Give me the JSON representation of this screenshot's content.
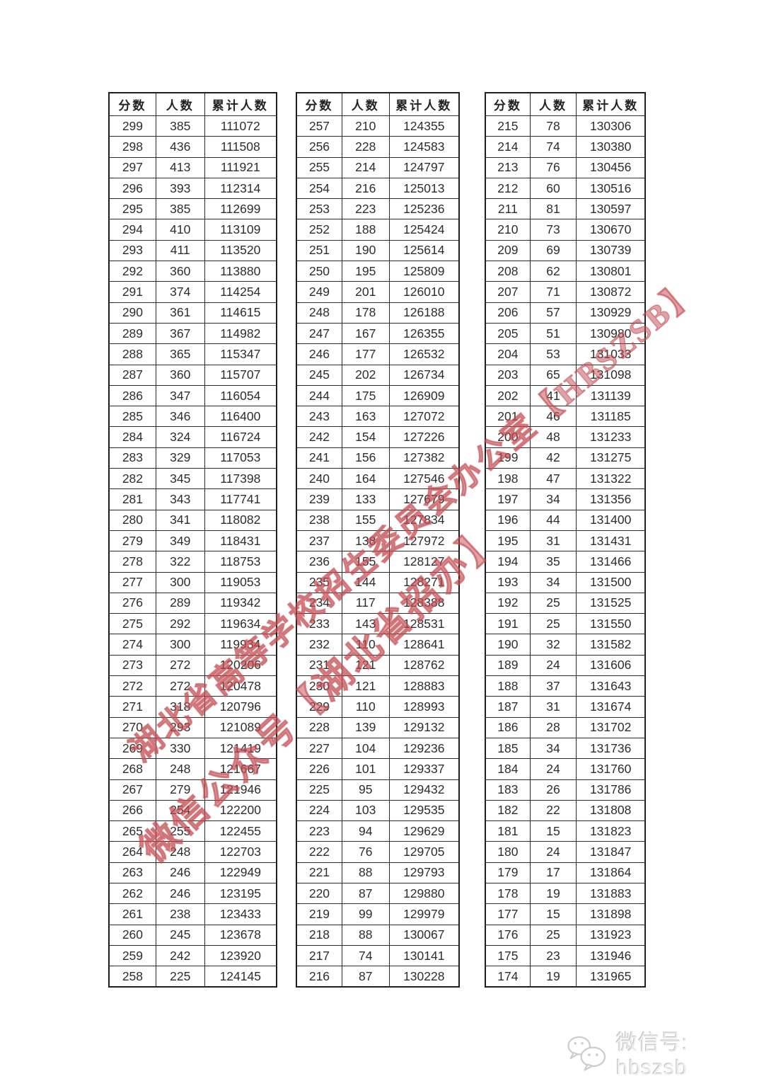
{
  "page": {
    "background": "#ffffff"
  },
  "columns": [
    "分数",
    "人数",
    "累计人数"
  ],
  "tables": [
    {
      "rows": [
        [
          299,
          385,
          111072
        ],
        [
          298,
          436,
          111508
        ],
        [
          297,
          413,
          111921
        ],
        [
          296,
          393,
          112314
        ],
        [
          295,
          385,
          112699
        ],
        [
          294,
          410,
          113109
        ],
        [
          293,
          411,
          113520
        ],
        [
          292,
          360,
          113880
        ],
        [
          291,
          374,
          114254
        ],
        [
          290,
          361,
          114615
        ],
        [
          289,
          367,
          114982
        ],
        [
          288,
          365,
          115347
        ],
        [
          287,
          360,
          115707
        ],
        [
          286,
          347,
          116054
        ],
        [
          285,
          346,
          116400
        ],
        [
          284,
          324,
          116724
        ],
        [
          283,
          329,
          117053
        ],
        [
          282,
          345,
          117398
        ],
        [
          281,
          343,
          117741
        ],
        [
          280,
          341,
          118082
        ],
        [
          279,
          349,
          118431
        ],
        [
          278,
          322,
          118753
        ],
        [
          277,
          300,
          119053
        ],
        [
          276,
          289,
          119342
        ],
        [
          275,
          292,
          119634
        ],
        [
          274,
          300,
          119934
        ],
        [
          273,
          272,
          120206
        ],
        [
          272,
          272,
          120478
        ],
        [
          271,
          318,
          120796
        ],
        [
          270,
          293,
          121089
        ],
        [
          269,
          330,
          121419
        ],
        [
          268,
          248,
          121667
        ],
        [
          267,
          279,
          121946
        ],
        [
          266,
          254,
          122200
        ],
        [
          265,
          255,
          122455
        ],
        [
          264,
          248,
          122703
        ],
        [
          263,
          246,
          122949
        ],
        [
          262,
          246,
          123195
        ],
        [
          261,
          238,
          123433
        ],
        [
          260,
          245,
          123678
        ],
        [
          259,
          242,
          123920
        ],
        [
          258,
          225,
          124145
        ]
      ]
    },
    {
      "rows": [
        [
          257,
          210,
          124355
        ],
        [
          256,
          228,
          124583
        ],
        [
          255,
          214,
          124797
        ],
        [
          254,
          216,
          125013
        ],
        [
          253,
          223,
          125236
        ],
        [
          252,
          188,
          125424
        ],
        [
          251,
          190,
          125614
        ],
        [
          250,
          195,
          125809
        ],
        [
          249,
          201,
          126010
        ],
        [
          248,
          178,
          126188
        ],
        [
          247,
          167,
          126355
        ],
        [
          246,
          177,
          126532
        ],
        [
          245,
          202,
          126734
        ],
        [
          244,
          175,
          126909
        ],
        [
          243,
          163,
          127072
        ],
        [
          242,
          154,
          127226
        ],
        [
          241,
          156,
          127382
        ],
        [
          240,
          164,
          127546
        ],
        [
          239,
          133,
          127679
        ],
        [
          238,
          155,
          127834
        ],
        [
          237,
          138,
          127972
        ],
        [
          236,
          155,
          128127
        ],
        [
          235,
          144,
          128271
        ],
        [
          234,
          117,
          128388
        ],
        [
          233,
          143,
          128531
        ],
        [
          232,
          110,
          128641
        ],
        [
          231,
          121,
          128762
        ],
        [
          230,
          121,
          128883
        ],
        [
          229,
          110,
          128993
        ],
        [
          228,
          139,
          129132
        ],
        [
          227,
          104,
          129236
        ],
        [
          226,
          101,
          129337
        ],
        [
          225,
          95,
          129432
        ],
        [
          224,
          103,
          129535
        ],
        [
          223,
          94,
          129629
        ],
        [
          222,
          76,
          129705
        ],
        [
          221,
          88,
          129793
        ],
        [
          220,
          87,
          129880
        ],
        [
          219,
          99,
          129979
        ],
        [
          218,
          88,
          130067
        ],
        [
          217,
          74,
          130141
        ],
        [
          216,
          87,
          130228
        ]
      ]
    },
    {
      "rows": [
        [
          215,
          78,
          130306
        ],
        [
          214,
          74,
          130380
        ],
        [
          213,
          76,
          130456
        ],
        [
          212,
          60,
          130516
        ],
        [
          211,
          81,
          130597
        ],
        [
          210,
          73,
          130670
        ],
        [
          209,
          69,
          130739
        ],
        [
          208,
          62,
          130801
        ],
        [
          207,
          71,
          130872
        ],
        [
          206,
          57,
          130929
        ],
        [
          205,
          51,
          130980
        ],
        [
          204,
          53,
          131033
        ],
        [
          203,
          65,
          131098
        ],
        [
          202,
          41,
          131139
        ],
        [
          201,
          46,
          131185
        ],
        [
          200,
          48,
          131233
        ],
        [
          199,
          42,
          131275
        ],
        [
          198,
          47,
          131322
        ],
        [
          197,
          34,
          131356
        ],
        [
          196,
          44,
          131400
        ],
        [
          195,
          31,
          131431
        ],
        [
          194,
          35,
          131466
        ],
        [
          193,
          34,
          131500
        ],
        [
          192,
          25,
          131525
        ],
        [
          191,
          25,
          131550
        ],
        [
          190,
          32,
          131582
        ],
        [
          189,
          24,
          131606
        ],
        [
          188,
          37,
          131643
        ],
        [
          187,
          31,
          131674
        ],
        [
          186,
          28,
          131702
        ],
        [
          185,
          34,
          131736
        ],
        [
          184,
          24,
          131760
        ],
        [
          183,
          26,
          131786
        ],
        [
          182,
          22,
          131808
        ],
        [
          181,
          15,
          131823
        ],
        [
          180,
          24,
          131847
        ],
        [
          179,
          17,
          131864
        ],
        [
          178,
          19,
          131883
        ],
        [
          177,
          15,
          131898
        ],
        [
          176,
          25,
          131923
        ],
        [
          175,
          23,
          131946
        ],
        [
          174,
          19,
          131965
        ]
      ]
    }
  ],
  "watermarks": [
    {
      "text": "湖北省高等学校招生委员会办公室【HBSZSB】",
      "color": "#c24a50"
    },
    {
      "text": "微信公众号【湖北省招办】",
      "color": "#c24a50"
    }
  ],
  "footer": {
    "icon": "wechat-icon",
    "label": "微信号: hbszsb",
    "text_color": "#ececec"
  }
}
